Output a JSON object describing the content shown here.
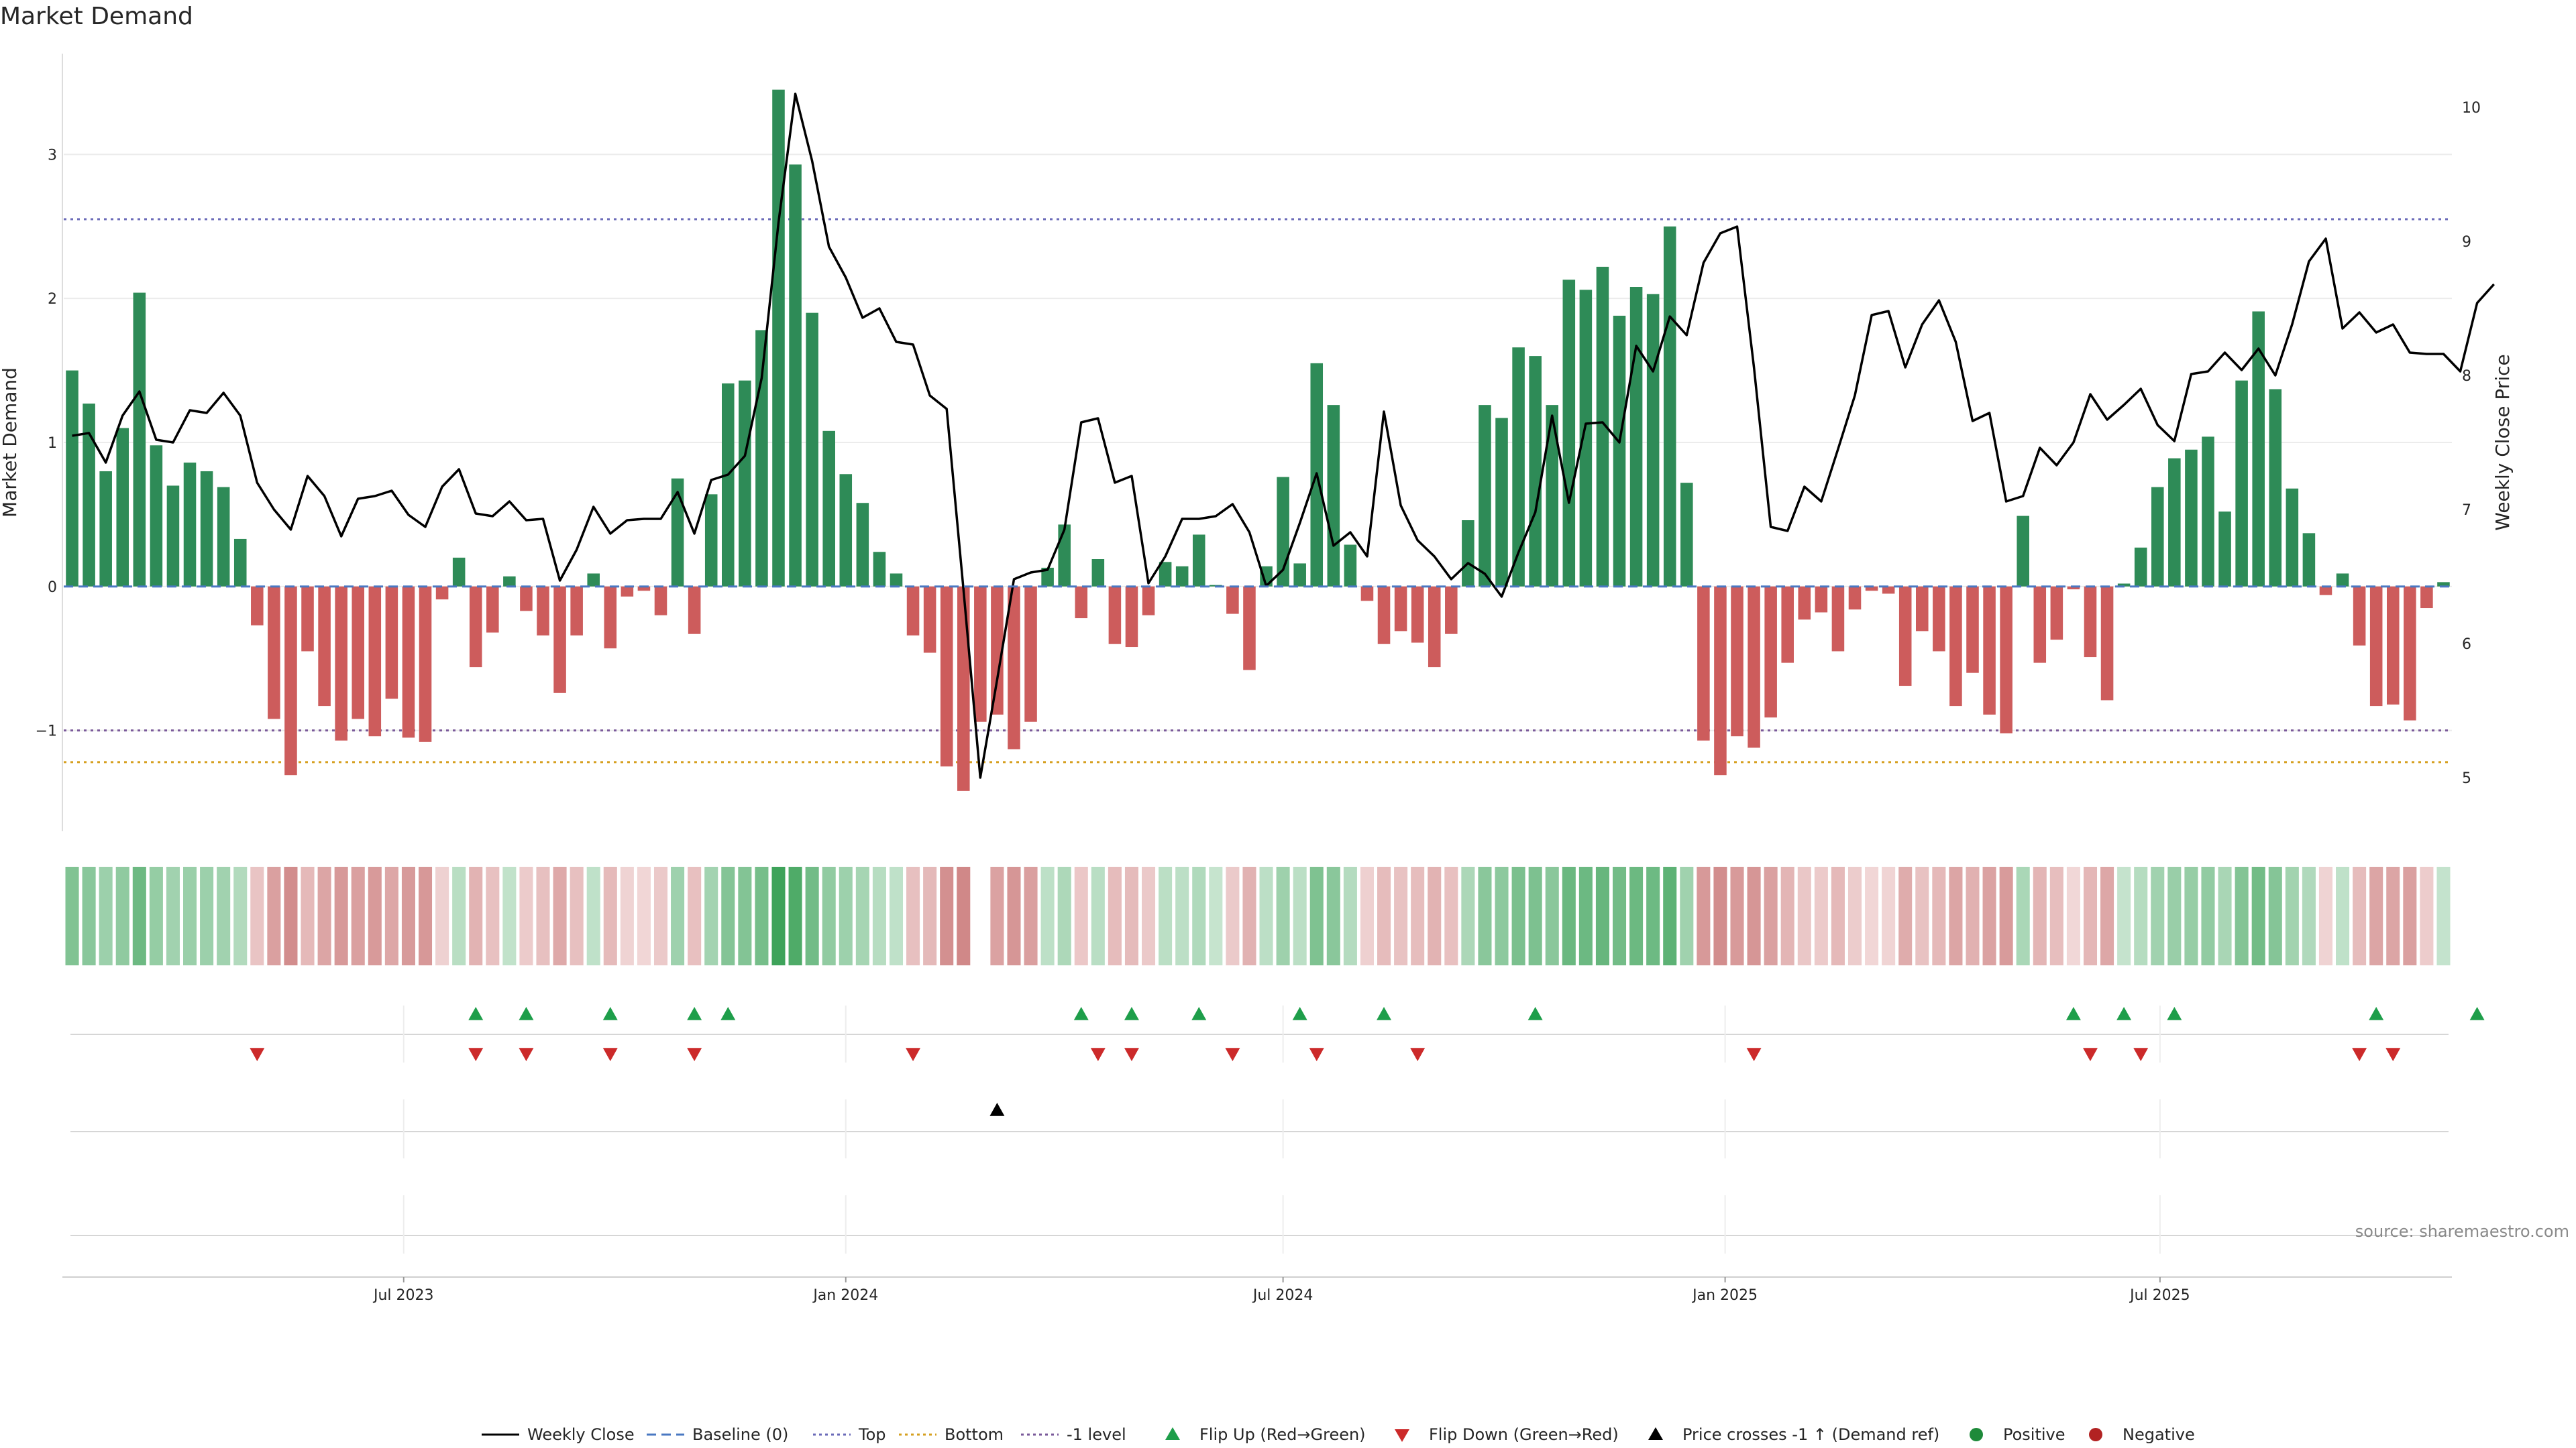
{
  "title": "Market Demand",
  "source_text": "source: sharemaestro.com",
  "chart_data": {
    "type": "bar",
    "ylabel": "Market Demand",
    "y2label": "Weekly Close Price",
    "ylim": [
      -1.7,
      3.7
    ],
    "y2lim": [
      4.6,
      10.4
    ],
    "yticks": [
      -1,
      0,
      1,
      2,
      3
    ],
    "y2ticks": [
      5,
      6,
      7,
      8,
      9,
      10
    ],
    "x_start": "2023-02-13",
    "x_step_days": 7,
    "xticks": [
      {
        "date": "2023-07-01",
        "label": "Jul 2023"
      },
      {
        "date": "2024-01-01",
        "label": "Jan 2024"
      },
      {
        "date": "2024-07-01",
        "label": "Jul 2024"
      },
      {
        "date": "2025-01-01",
        "label": "Jan 2025"
      },
      {
        "date": "2025-07-01",
        "label": "Jul 2025"
      }
    ],
    "grid": true,
    "legend_position": "bottom",
    "reference_lines": {
      "top": 2.55,
      "bottom": -1.22,
      "minus_one": -1
    },
    "colors": {
      "positive": "#2e8b57",
      "negative": "#cd5c5c",
      "close_line": "#000000",
      "baseline": "#4a78c2",
      "top_line": "#6b6bb8",
      "bottom_line": "#d6a020",
      "minus_one_line": "#7a5a9a",
      "flip_up": "#1e9e4a",
      "flip_down": "#cc2a2a",
      "price_cross": "#000000",
      "positive_dot": "#1e8a3a",
      "negative_dot": "#b22222"
    },
    "demand": [
      1.5,
      1.27,
      0.8,
      1.1,
      2.04,
      0.98,
      0.7,
      0.86,
      0.8,
      0.69,
      0.33,
      -0.27,
      -0.92,
      -1.31,
      -0.45,
      -0.83,
      -1.07,
      -0.92,
      -1.04,
      -0.78,
      -1.05,
      -1.08,
      -0.09,
      0.2,
      -0.56,
      -0.32,
      0.07,
      -0.17,
      -0.34,
      -0.74,
      -0.34,
      0.09,
      -0.43,
      -0.07,
      -0.03,
      -0.2,
      0.75,
      -0.33,
      0.64,
      1.41,
      1.43,
      1.78,
      3.45,
      2.93,
      1.9,
      1.08,
      0.78,
      0.58,
      0.24,
      0.09,
      -0.34,
      -0.46,
      -1.25,
      -1.42,
      -0.94,
      -0.89,
      -1.13,
      -0.94,
      0.13,
      0.43,
      -0.22,
      0.19,
      -0.4,
      -0.42,
      -0.2,
      0.17,
      0.14,
      0.36,
      0.01,
      -0.19,
      -0.58,
      0.14,
      0.76,
      0.16,
      1.55,
      1.26,
      0.29,
      -0.1,
      -0.4,
      -0.31,
      -0.39,
      -0.56,
      -0.33,
      0.46,
      1.26,
      1.17,
      1.66,
      1.6,
      1.26,
      2.13,
      2.06,
      2.22,
      1.88,
      2.08,
      2.03,
      2.5,
      0.72,
      -1.07,
      -1.31,
      -1.04,
      -1.12,
      -0.91,
      -0.53,
      -0.23,
      -0.18,
      -0.45,
      -0.16,
      -0.03,
      -0.05,
      -0.69,
      -0.31,
      -0.45,
      -0.83,
      -0.6,
      -0.89,
      -1.02,
      0.49,
      -0.53,
      -0.37,
      -0.02,
      -0.49,
      -0.79,
      0.02,
      0.27,
      0.69,
      0.89,
      0.95,
      1.04,
      0.52,
      1.43,
      1.91,
      1.37,
      0.68,
      0.37,
      -0.06,
      0.09,
      -0.41,
      -0.83,
      -0.82,
      -0.93,
      -0.15,
      0.03
    ],
    "close": [
      7.55,
      7.57,
      7.35,
      7.7,
      7.88,
      7.52,
      7.5,
      7.74,
      7.72,
      7.87,
      7.7,
      7.2,
      7.0,
      6.85,
      7.25,
      7.1,
      6.8,
      7.08,
      7.1,
      7.14,
      6.96,
      6.87,
      7.17,
      7.3,
      6.97,
      6.95,
      7.06,
      6.92,
      6.93,
      6.47,
      6.7,
      7.02,
      6.82,
      6.92,
      6.93,
      6.93,
      7.13,
      6.82,
      7.22,
      7.26,
      7.4,
      7.98,
      9.14,
      10.1,
      9.6,
      8.96,
      8.73,
      8.43,
      8.5,
      8.25,
      8.23,
      7.85,
      7.75,
      6.4,
      5.0,
      5.73,
      6.48,
      6.53,
      6.55,
      6.85,
      7.65,
      7.68,
      7.2,
      7.25,
      6.45,
      6.65,
      6.93,
      6.93,
      6.95,
      7.04,
      6.83,
      6.43,
      6.55,
      6.9,
      7.27,
      6.73,
      6.83,
      6.65,
      7.73,
      7.03,
      6.77,
      6.65,
      6.48,
      6.6,
      6.52,
      6.35,
      6.68,
      6.98,
      7.7,
      7.05,
      7.64,
      7.65,
      7.5,
      8.22,
      8.03,
      8.44,
      8.3,
      8.84,
      9.06,
      9.11,
      8.06,
      6.87,
      6.84,
      7.17,
      7.06,
      7.45,
      7.85,
      8.45,
      8.48,
      8.06,
      8.38,
      8.56,
      8.25,
      7.66,
      7.72,
      7.06,
      7.1,
      7.46,
      7.33,
      7.5,
      7.86,
      7.67,
      7.78,
      7.9,
      7.63,
      7.51,
      8.01,
      8.03,
      8.17,
      8.04,
      8.2,
      8.0,
      8.38,
      8.85,
      9.02,
      8.35,
      8.47,
      8.32,
      8.38,
      8.17,
      8.16,
      8.16,
      8.03,
      8.54,
      8.68
    ],
    "flip_up_weeks": [
      24,
      27,
      32,
      37,
      39,
      60,
      63,
      67,
      73,
      78,
      87,
      119,
      122,
      125,
      137,
      143
    ],
    "flip_down_weeks": [
      11,
      24,
      27,
      32,
      37,
      50,
      61,
      63,
      69,
      74,
      80,
      100,
      120,
      123,
      136,
      138
    ],
    "price_cross_weeks": [
      55
    ],
    "heat_gap_weeks": [
      54
    ],
    "legend": [
      {
        "label": "Weekly Close",
        "symbol": "line-solid",
        "color": "#000000"
      },
      {
        "label": "Baseline (0)",
        "symbol": "line-dashed",
        "color": "#4a78c2"
      },
      {
        "label": "Top",
        "symbol": "line-dotted",
        "color": "#6b6bb8"
      },
      {
        "label": "Bottom",
        "symbol": "line-dotted",
        "color": "#d6a020"
      },
      {
        "label": "-1 level",
        "symbol": "line-dotted",
        "color": "#7a5a9a"
      },
      {
        "label": "Flip Up (Red→Green)",
        "symbol": "triangle-up",
        "color": "#1e9e4a"
      },
      {
        "label": "Flip Down (Green→Red)",
        "symbol": "triangle-down",
        "color": "#cc2a2a"
      },
      {
        "label": "Price crosses -1 ↑ (Demand ref)",
        "symbol": "triangle-up",
        "color": "#000000"
      },
      {
        "label": "Positive",
        "symbol": "dot",
        "color": "#1e8a3a"
      },
      {
        "label": "Negative",
        "symbol": "dot",
        "color": "#b22222"
      }
    ]
  }
}
